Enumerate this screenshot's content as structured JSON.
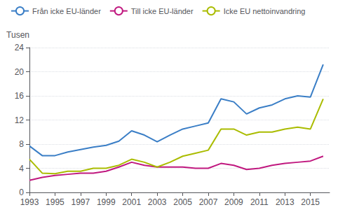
{
  "chart_data": {
    "type": "line",
    "ylabel": "Tusen",
    "x": [
      1993,
      1994,
      1995,
      1996,
      1997,
      1998,
      1999,
      2000,
      2001,
      2002,
      2003,
      2004,
      2005,
      2006,
      2007,
      2008,
      2009,
      2010,
      2011,
      2012,
      2013,
      2014,
      2015,
      2016
    ],
    "series": [
      {
        "name": "Från icke EU-länder",
        "color": "#3A7EC6",
        "values": [
          7.7,
          6.1,
          6.1,
          6.7,
          7.1,
          7.5,
          7.8,
          8.5,
          10.2,
          9.5,
          8.4,
          9.5,
          10.5,
          11.0,
          11.5,
          15.5,
          15.0,
          13.0,
          14.0,
          14.5,
          15.5,
          16.0,
          15.8,
          21.2
        ]
      },
      {
        "name": "Till icke EU-länder",
        "color": "#C0187F",
        "values": [
          2.0,
          2.5,
          2.8,
          3.0,
          3.2,
          3.2,
          3.5,
          4.2,
          5.0,
          4.5,
          4.2,
          4.2,
          4.2,
          4.0,
          4.0,
          4.8,
          4.5,
          3.8,
          4.0,
          4.5,
          4.8,
          5.0,
          5.2,
          6.0
        ]
      },
      {
        "name": "Icke EU nettoinvandring",
        "color": "#AABC00",
        "values": [
          5.5,
          3.2,
          3.1,
          3.5,
          3.5,
          4.0,
          4.0,
          4.5,
          5.5,
          5.0,
          4.2,
          5.0,
          6.0,
          6.5,
          7.0,
          10.5,
          10.5,
          9.5,
          10.0,
          10.0,
          10.5,
          10.8,
          10.5,
          15.5
        ]
      }
    ],
    "xlim": [
      1993,
      2016.5
    ],
    "xticks": [
      1993,
      1995,
      1997,
      1999,
      2001,
      2003,
      2005,
      2007,
      2009,
      2011,
      2013,
      2015
    ],
    "ylim": [
      0,
      24
    ],
    "yticks": [
      0,
      4,
      8,
      12,
      16,
      20,
      24
    ],
    "grid": true,
    "legend": "top left"
  }
}
